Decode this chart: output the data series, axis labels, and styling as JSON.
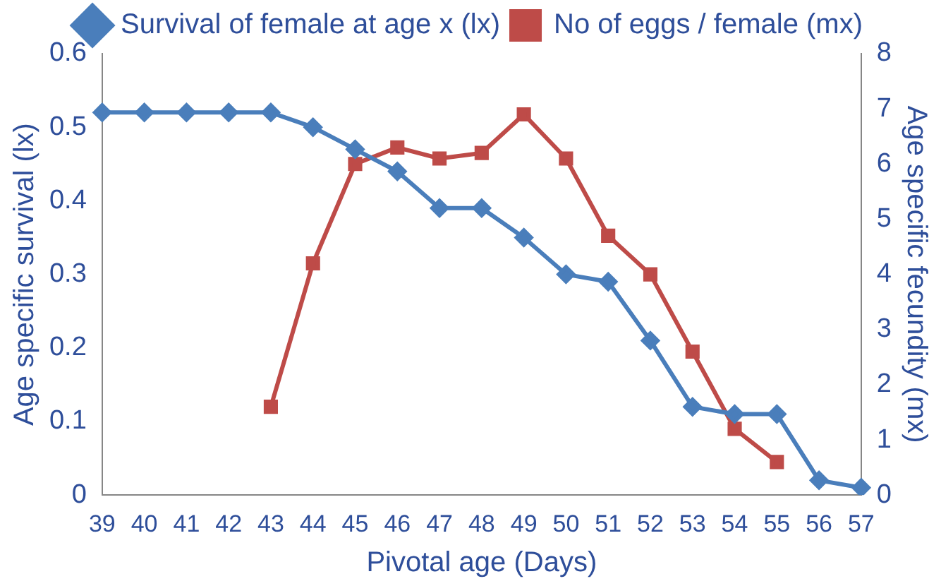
{
  "chart_data": {
    "type": "line",
    "xlabel": "Pivotal age (Days)",
    "ylabel": "Age specific survival (lx)",
    "y2label": "Age specific fecundity (mx)",
    "categories": [
      "39",
      "40",
      "41",
      "42",
      "43",
      "44",
      "45",
      "46",
      "47",
      "48",
      "49",
      "50",
      "51",
      "52",
      "53",
      "54",
      "55",
      "56",
      "57"
    ],
    "series": [
      {
        "name": "Survival of female at age x (lx)",
        "color": "#4a7ebb",
        "marker": "diamond",
        "values": [
          0.52,
          0.52,
          0.52,
          0.52,
          0.52,
          0.5,
          0.47,
          0.44,
          0.39,
          0.39,
          0.35,
          0.3,
          0.29,
          0.21,
          0.12,
          0.11,
          0.11,
          0.02,
          0.01
        ]
      },
      {
        "name": "No of eggs / female (mx)",
        "color": "#be4b48",
        "marker": "square",
        "axis": "y2",
        "values": [
          null,
          null,
          null,
          null,
          1.6,
          4.2,
          6.0,
          6.3,
          6.1,
          6.2,
          6.9,
          6.1,
          4.7,
          4.0,
          2.6,
          1.2,
          0.6,
          null,
          null
        ]
      }
    ],
    "ylim": [
      0,
      0.6
    ],
    "yticks": [
      0,
      0.1,
      0.2,
      0.3,
      0.4,
      0.5,
      0.6
    ],
    "y2lim": [
      0,
      8
    ],
    "y2ticks": [
      0,
      1,
      2,
      3,
      4,
      5,
      6,
      7,
      8
    ],
    "grid": false,
    "legend": "top"
  }
}
